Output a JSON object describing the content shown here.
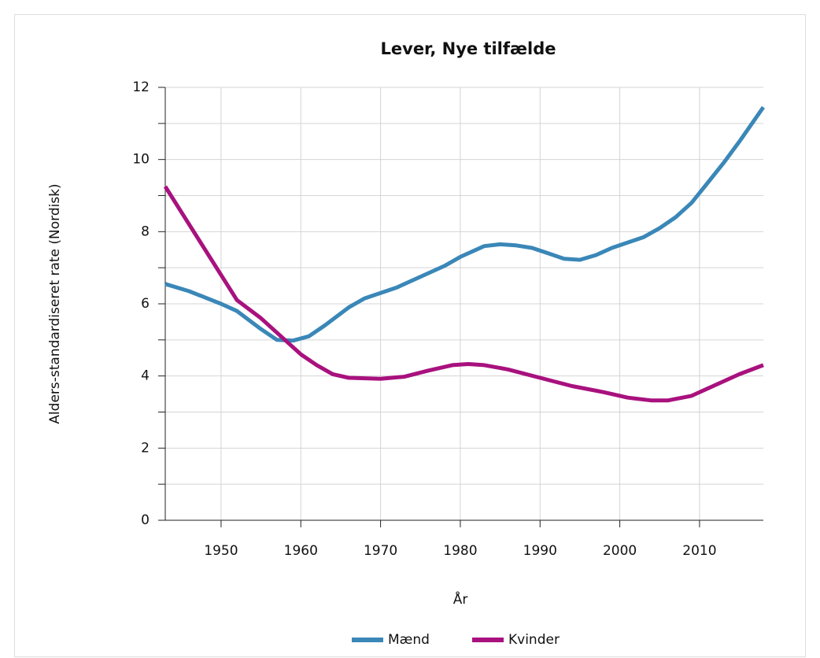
{
  "chart_data": {
    "type": "line",
    "title": "Lever, Nye tilfælde",
    "x_label": "År",
    "y_label": "Alders-standardiseret rate (Nordisk)",
    "xlim": [
      1943,
      2018
    ],
    "xticks": [
      1950,
      1960,
      1970,
      1980,
      1990,
      2000,
      2010
    ],
    "ylim": [
      0,
      12
    ],
    "yticks": [
      0,
      2,
      4,
      6,
      8,
      10,
      12
    ],
    "grid": true,
    "legend": "bottom",
    "series": [
      {
        "name": "Mænd",
        "color": "#3a87b8",
        "x": [
          1943,
          1946,
          1950,
          1952,
          1955,
          1957,
          1959,
          1961,
          1963,
          1966,
          1968,
          1970,
          1972,
          1975,
          1978,
          1980,
          1983,
          1985,
          1987,
          1989,
          1991,
          1993,
          1995,
          1997,
          1999,
          2001,
          2003,
          2005,
          2007,
          2009,
          2011,
          2013,
          2015,
          2018
        ],
        "values": [
          6.55,
          6.35,
          6.0,
          5.8,
          5.3,
          5.0,
          4.98,
          5.1,
          5.4,
          5.9,
          6.15,
          6.3,
          6.45,
          6.75,
          7.05,
          7.3,
          7.6,
          7.65,
          7.62,
          7.55,
          7.4,
          7.25,
          7.22,
          7.35,
          7.55,
          7.7,
          7.85,
          8.1,
          8.4,
          8.8,
          9.35,
          9.9,
          10.5,
          11.45
        ]
      },
      {
        "name": "Kvinder",
        "color": "#a8117e",
        "x": [
          1943,
          1946,
          1950,
          1952,
          1955,
          1958,
          1960,
          1962,
          1964,
          1966,
          1970,
          1973,
          1976,
          1979,
          1981,
          1983,
          1986,
          1990,
          1994,
          1998,
          2001,
          2004,
          2006,
          2009,
          2012,
          2015,
          2018
        ],
        "values": [
          9.25,
          8.2,
          6.8,
          6.1,
          5.6,
          5.0,
          4.6,
          4.3,
          4.05,
          3.95,
          3.92,
          3.98,
          4.15,
          4.3,
          4.33,
          4.3,
          4.18,
          3.95,
          3.72,
          3.55,
          3.4,
          3.32,
          3.32,
          3.45,
          3.75,
          4.05,
          4.3
        ]
      }
    ]
  }
}
